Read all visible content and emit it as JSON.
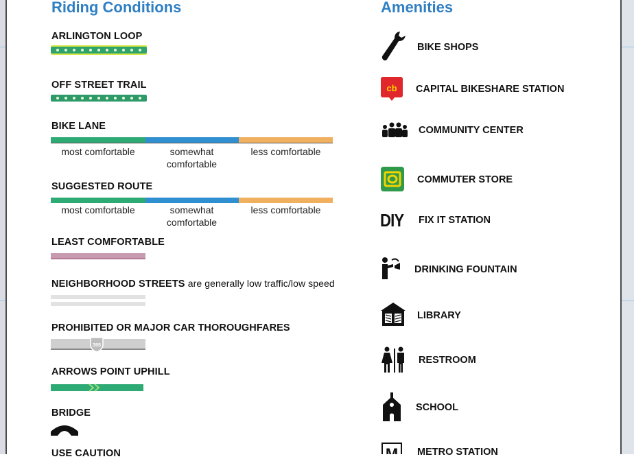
{
  "riding": {
    "title": "Riding Conditions",
    "items": [
      {
        "label": "ARLINGTON LOOP"
      },
      {
        "label": "OFF STREET TRAIL"
      },
      {
        "label": "BIKE LANE",
        "levels": [
          "most comfortable",
          "somewhat comfortable",
          "less comfortable"
        ]
      },
      {
        "label": "SUGGESTED ROUTE",
        "levels": [
          "most comfortable",
          "somewhat comfortable",
          "less comfortable"
        ]
      },
      {
        "label": "LEAST COMFORTABLE"
      },
      {
        "label": "NEIGHBORHOOD STREETS",
        "suffix": "are generally low traffic/low speed"
      },
      {
        "label": "PROHIBITED OR MAJOR CAR THOROUGHFARES",
        "shield": "395"
      },
      {
        "label": "ARROWS POINT UPHILL"
      },
      {
        "label": "BRIDGE"
      },
      {
        "label": "USE CAUTION"
      }
    ]
  },
  "amenities": {
    "title": "Amenities",
    "items": [
      {
        "label": "BIKE SHOPS",
        "icon": "wrench-icon"
      },
      {
        "label": "CAPITAL BIKESHARE STATION",
        "icon": "bikeshare-icon",
        "icon_text": "cb"
      },
      {
        "label": "COMMUNITY CENTER",
        "icon": "people-group-icon"
      },
      {
        "label": "COMMUTER STORE",
        "icon": "commuter-store-icon"
      },
      {
        "label": "FIX IT STATION",
        "icon": "diy-icon",
        "icon_text": "DIY"
      },
      {
        "label": "DRINKING FOUNTAIN",
        "icon": "drinking-fountain-icon"
      },
      {
        "label": "LIBRARY",
        "icon": "library-icon"
      },
      {
        "label": "RESTROOM",
        "icon": "restroom-icon"
      },
      {
        "label": "SCHOOL",
        "icon": "school-icon"
      },
      {
        "label": "METRO STATION",
        "icon": "metro-icon",
        "icon_text": "M"
      }
    ]
  },
  "colors": {
    "title_blue": "#2f7fc3",
    "loop_green": "#2fa36b",
    "loop_yellow": "#d8e84a",
    "trail_green": "#2e9a6a",
    "most_green": "#2eaa74",
    "somewhat_blue": "#2f8fd0",
    "less_orange": "#f0b060",
    "least_pink": "#c79ab0",
    "neighborhood_gray": "#e2e2e2",
    "prohibited_gray": "#cfcfcf",
    "bikeshare_red": "#e0272b",
    "commuter_green": "#2f9a4a"
  }
}
